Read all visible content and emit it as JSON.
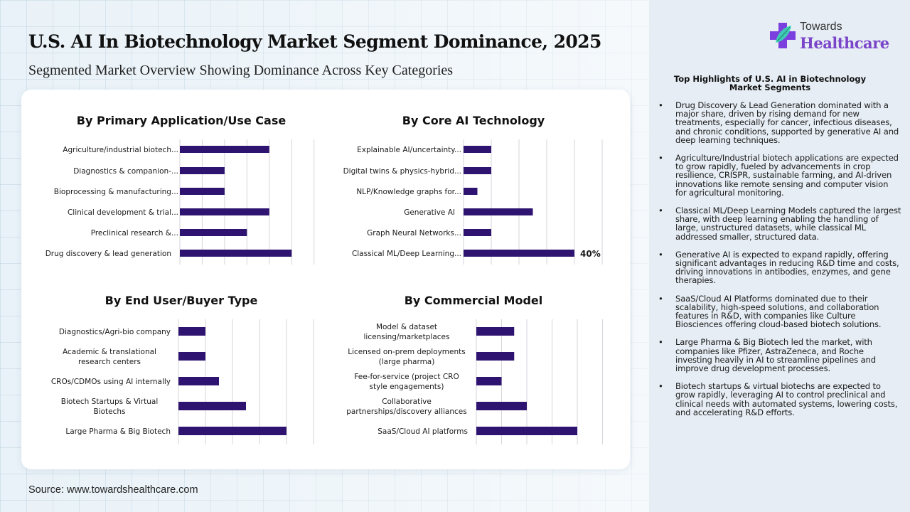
{
  "header": {
    "title": "U.S. AI In Biotechnology Market Segment Dominance, 2025",
    "subtitle": "Segmented Market Overview Showing Dominance Across Key Categories"
  },
  "source": "Source: www.towardshealthcare.com",
  "brand": {
    "line1": "Towards",
    "line2": "Healthcare",
    "icon": "medical-cross-leaf-icon",
    "colors": {
      "cross": "#7b3fe0",
      "leaf": "#3ad6b0",
      "wordmark": "#7a45c9"
    }
  },
  "colors": {
    "bar": "#2e1470",
    "grid": "#d6d6dc"
  },
  "highlights": {
    "title": "Top Highlights of U.S. AI in Biotechnology Market Segments",
    "bullet": "•",
    "items": [
      "Drug Discovery & Lead Generation dominated with a major share, driven by rising demand for new treatments, especially for cancer, infectious diseases, and chronic conditions, supported by generative AI and deep learning techniques.",
      "Agriculture/Industrial biotech applications are expected to grow rapidly, fueled by advancements in crop resilience, CRISPR, sustainable farming, and AI-driven innovations like remote sensing and computer vision for agricultural monitoring.",
      "Classical ML/Deep Learning Models captured the largest share, with deep learning enabling the handling of large, unstructured datasets, while classical ML addressed smaller, structured data.",
      "Generative AI is expected to expand rapidly, offering significant advantages in reducing R&D time and costs, driving innovations in antibodies, enzymes, and gene therapies.",
      "SaaS/Cloud AI Platforms dominated due to their scalability, high-speed solutions, and collaboration features in R&D, with companies like Culture Biosciences offering cloud-based biotech solutions.",
      "Large Pharma & Big Biotech led the market, with companies like Pfizer, AstraZeneca, and Roche investing heavily in AI to streamline pipelines and improve drug development processes.",
      "Biotech startups & virtual biotechs are expected to grow rapidly, leveraging AI to control preclinical and clinical needs with automated systems, lowering costs, and accelerating R&D efforts."
    ]
  },
  "chart_data": [
    {
      "type": "bar",
      "orientation": "horizontal",
      "title": "By Primary Application/Use Case",
      "unit": "%",
      "xlim": [
        0,
        60
      ],
      "grid_step": 10,
      "grid": true,
      "axis_tick_labels_shown": false,
      "categories": [
        "Agriculture/industrial biotech...",
        "Diagnostics & companion-...",
        "Bioprocessing & manufacturing...",
        "Clinical development & trial...",
        "Preclinical research &...",
        "Drug discovery & lead generation"
      ],
      "categories_lines": [
        [
          "Agriculture/industrial biotech..."
        ],
        [
          "Diagnostics & companion-..."
        ],
        [
          "Bioprocessing & manufacturing..."
        ],
        [
          "Clinical development & trial..."
        ],
        [
          "Preclinical research &..."
        ],
        [
          "Drug discovery & lead generation"
        ]
      ],
      "values": [
        40,
        20,
        20,
        40,
        30,
        50
      ],
      "data_labels": [
        null,
        null,
        null,
        null,
        null,
        null
      ]
    },
    {
      "type": "bar",
      "orientation": "horizontal",
      "title": "By Core AI Technology",
      "unit": "%",
      "xlim": [
        0,
        50
      ],
      "grid_step": 10,
      "grid": true,
      "axis_tick_labels_shown": false,
      "categories": [
        "Explainable AI/uncertainty...",
        "Digital twins & physics-hybrid...",
        "NLP/Knowledge graphs for...",
        "Generative AI",
        "Graph Neural Networks...",
        "Classical ML/Deep Learning..."
      ],
      "categories_lines": [
        [
          "Explainable AI/uncertainty..."
        ],
        [
          "Digital twins & physics-hybrid..."
        ],
        [
          "NLP/Knowledge graphs for..."
        ],
        [
          "Generative AI"
        ],
        [
          "Graph Neural Networks..."
        ],
        [
          "Classical ML/Deep Learning..."
        ]
      ],
      "values": [
        10,
        10,
        5,
        25,
        10,
        40
      ],
      "data_labels": [
        null,
        null,
        null,
        null,
        null,
        "40%"
      ]
    },
    {
      "type": "bar",
      "orientation": "horizontal",
      "title": "By End User/Buyer Type",
      "unit": "%",
      "xlim": [
        0,
        50
      ],
      "grid_step": 10,
      "grid": true,
      "axis_tick_labels_shown": false,
      "categories": [
        "Diagnostics/Agri-bio company",
        "Academic & translational research centers",
        "CROs/CDMOs using AI internally",
        "Biotech Startups & Virtual Biotechs",
        "Large Pharma & Big Biotech"
      ],
      "categories_lines": [
        [
          "Diagnostics/Agri-bio company"
        ],
        [
          "Academic & translational",
          "research centers"
        ],
        [
          "CROs/CDMOs using AI internally"
        ],
        [
          "Biotech Startups & Virtual",
          "Biotechs"
        ],
        [
          "Large Pharma & Big Biotech"
        ]
      ],
      "values": [
        10,
        10,
        15,
        25,
        40
      ],
      "data_labels": [
        null,
        null,
        null,
        null,
        null
      ]
    },
    {
      "type": "bar",
      "orientation": "horizontal",
      "title": "By Commercial Model",
      "unit": "%",
      "xlim": [
        0,
        50
      ],
      "grid_step": 10,
      "grid": true,
      "axis_tick_labels_shown": false,
      "categories": [
        "Model & dataset licensing/marketplaces",
        "Licensed on-prem deployments (large pharma)",
        "Fee-for-service (project CRO style engagements)",
        "Collaborative partnerships/discovery alliances",
        "SaaS/Cloud AI platforms"
      ],
      "categories_lines": [
        [
          "Model & dataset",
          "licensing/marketplaces"
        ],
        [
          "Licensed on-prem deployments",
          "(large pharma)"
        ],
        [
          "Fee-for-service (project CRO",
          "style engagements)"
        ],
        [
          "Collaborative",
          "partnerships/discovery alliances"
        ],
        [
          "SaaS/Cloud AI platforms"
        ]
      ],
      "values": [
        15,
        15,
        10,
        20,
        40
      ],
      "data_labels": [
        null,
        null,
        null,
        null,
        null
      ]
    }
  ]
}
